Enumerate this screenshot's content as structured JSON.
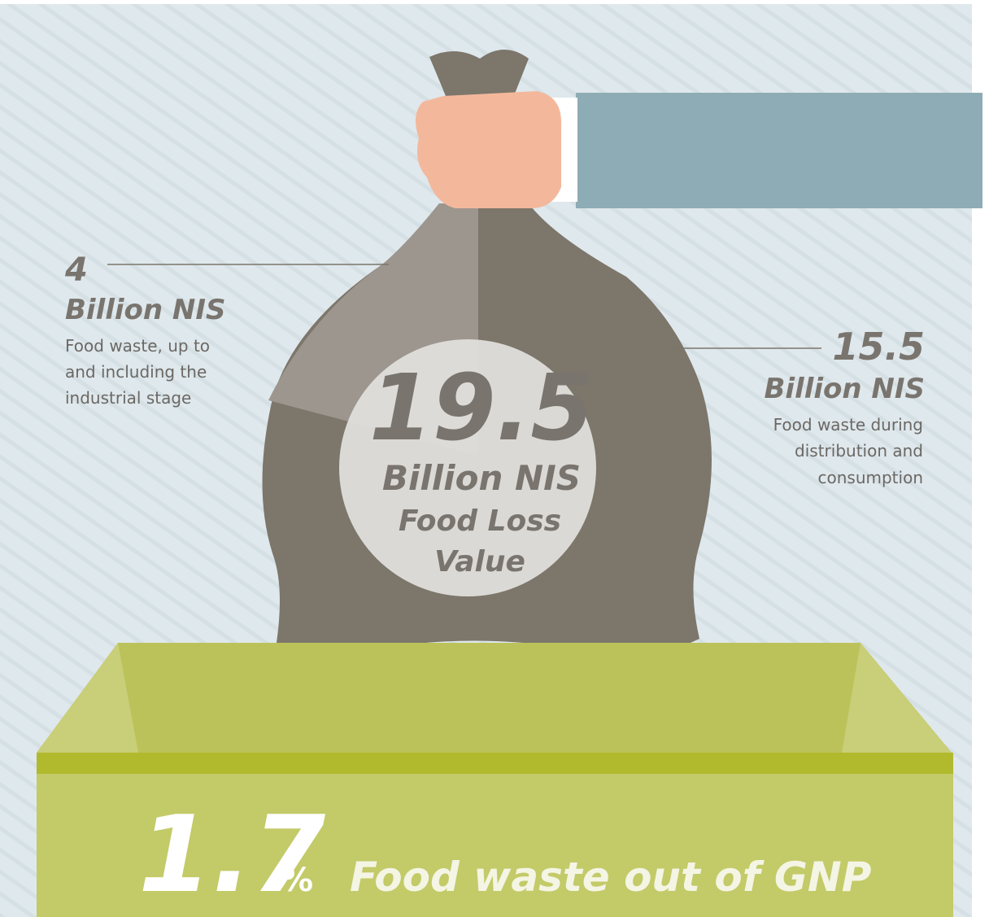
{
  "left_item": {
    "value": "4",
    "unit": "Billion NIS",
    "description": [
      "Food waste, up to",
      "and including the",
      "industrial stage"
    ]
  },
  "right_item": {
    "value": "15.5",
    "unit": "Billion NIS",
    "description": [
      "Food waste during",
      "distribution and",
      "consumption"
    ]
  },
  "center": {
    "value": "19.5",
    "unit": "Billion NIS",
    "label": [
      "Food Loss",
      "Value"
    ]
  },
  "footer": {
    "value": "1.7",
    "symbol": "%",
    "label": "Food waste out of GNP"
  }
}
